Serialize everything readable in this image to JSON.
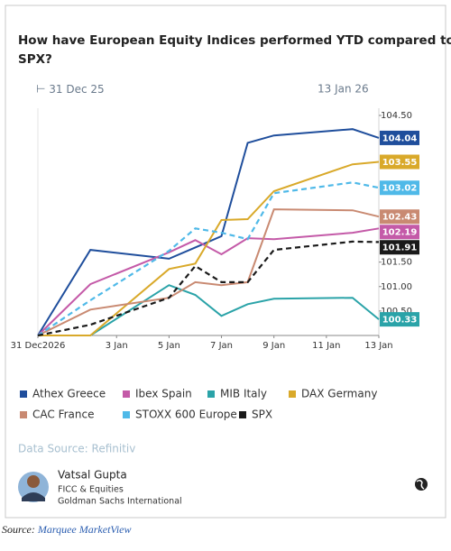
{
  "title": "How have European Equity Indices performed YTD compared to SPX?",
  "date_range": {
    "start": "31 Dec 25",
    "end": "13 Jan 26"
  },
  "chart_data": {
    "type": "line",
    "x": [
      0,
      2,
      5,
      6,
      7,
      8,
      9,
      12,
      13
    ],
    "xlim": [
      0,
      13
    ],
    "xticks": [
      {
        "value": 0,
        "label": "31 Dec2026"
      },
      {
        "value": 3,
        "label": "3 Jan"
      },
      {
        "value": 5,
        "label": "5 Jan"
      },
      {
        "value": 7,
        "label": "7 Jan"
      },
      {
        "value": 9,
        "label": "9 Jan"
      },
      {
        "value": 11,
        "label": "11 Jan"
      },
      {
        "value": 13,
        "label": "13 Jan"
      }
    ],
    "ylim": [
      100,
      104.5
    ],
    "yticks": [
      {
        "value": 104.5,
        "label": "104.50"
      },
      {
        "value": 101.5,
        "label": "101.50"
      },
      {
        "value": 101,
        "label": "101.00"
      },
      {
        "value": 100.5,
        "label": "100.50"
      }
    ],
    "series": [
      {
        "name": "Athex Greece",
        "color": "#1f4e9c",
        "dashed": false,
        "values": [
          100,
          101.75,
          101.57,
          101.8,
          102.03,
          103.94,
          104.09,
          104.22,
          104.04
        ]
      },
      {
        "name": "Ibex Spain",
        "color": "#c45aa8",
        "dashed": false,
        "values": [
          100,
          101.05,
          101.7,
          101.95,
          101.66,
          101.99,
          101.97,
          102.1,
          102.19
        ]
      },
      {
        "name": "MIB Italy",
        "color": "#2aa3a8",
        "dashed": false,
        "values": [
          100,
          100,
          101.03,
          100.83,
          100.4,
          100.64,
          100.75,
          100.77,
          100.33
        ]
      },
      {
        "name": "DAX Germany",
        "color": "#d9a92a",
        "dashed": false,
        "values": [
          100,
          100,
          101.36,
          101.47,
          102.36,
          102.38,
          102.95,
          103.5,
          103.55
        ]
      },
      {
        "name": "CAC France",
        "color": "#c98a72",
        "dashed": false,
        "values": [
          100,
          100.53,
          100.77,
          101.09,
          101.03,
          101.09,
          102.58,
          102.56,
          102.43
        ]
      },
      {
        "name": "STOXX 600 Europe",
        "color": "#4fb9e8",
        "dashed": true,
        "values": [
          100,
          100.72,
          101.73,
          102.19,
          102.1,
          101.97,
          102.91,
          103.13,
          103.02
        ]
      },
      {
        "name": "SPX",
        "color": "#1a1a1a",
        "dashed": true,
        "values": [
          100,
          100.22,
          100.77,
          101.42,
          101.09,
          101.09,
          101.75,
          101.92,
          101.91
        ]
      }
    ]
  },
  "data_source": "Data Source: Refinitiv",
  "author": {
    "name": "Vatsal Gupta",
    "team": "FICC & Equities",
    "company": "Goldman Sachs International"
  },
  "source": {
    "prefix": "Source:",
    "name": "Marquee MarketView"
  }
}
